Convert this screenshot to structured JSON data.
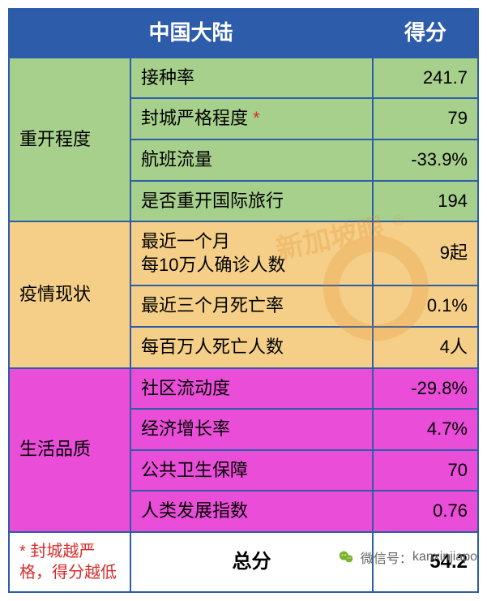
{
  "header": {
    "title": "中国大陆",
    "score_label": "得分"
  },
  "sections": [
    {
      "key": "reopen",
      "bg": "green",
      "category": "重开程度",
      "rows": [
        {
          "metric": "接种率",
          "score": "241.7",
          "star": false
        },
        {
          "metric": "封城严格程度",
          "score": "79",
          "star": true
        },
        {
          "metric": "航班流量",
          "score": "-33.9%",
          "star": false
        },
        {
          "metric": "是否重开国际旅行",
          "score": "194",
          "star": false
        }
      ]
    },
    {
      "key": "status",
      "bg": "yellow",
      "category": "疫情现状",
      "rows": [
        {
          "metric": "最近一个月\n每10万人确诊人数",
          "score": "9起",
          "star": false
        },
        {
          "metric": "最近三个月死亡率",
          "score": "0.1%",
          "star": false
        },
        {
          "metric": "每百万人死亡人数",
          "score": "4人",
          "star": false
        }
      ]
    },
    {
      "key": "life",
      "bg": "pink",
      "category": "生活品质",
      "rows": [
        {
          "metric": "社区流动度",
          "score": "-29.8%",
          "star": false
        },
        {
          "metric": "经济增长率",
          "score": "4.7%",
          "star": false
        },
        {
          "metric": "公共卫生保障",
          "score": "70",
          "star": false
        },
        {
          "metric": "人类发展指数",
          "score": "0.76",
          "star": false
        }
      ]
    }
  ],
  "footnote": "* 封城越严格，得分越低",
  "total": {
    "label": "总分",
    "value": "54.2"
  },
  "watermark_text": "新加坡眼",
  "bottom_bar": {
    "prefix": "微信号：",
    "value": "kanxinjiapo"
  },
  "colors": {
    "border": "#2d5caa",
    "header_bg": "#2d5caa",
    "green": "#a7d08d",
    "yellow": "#f5cf87",
    "pink": "#ea4dd8",
    "footnote_text": "#d82c2c",
    "watermark": "#e08a2e"
  }
}
